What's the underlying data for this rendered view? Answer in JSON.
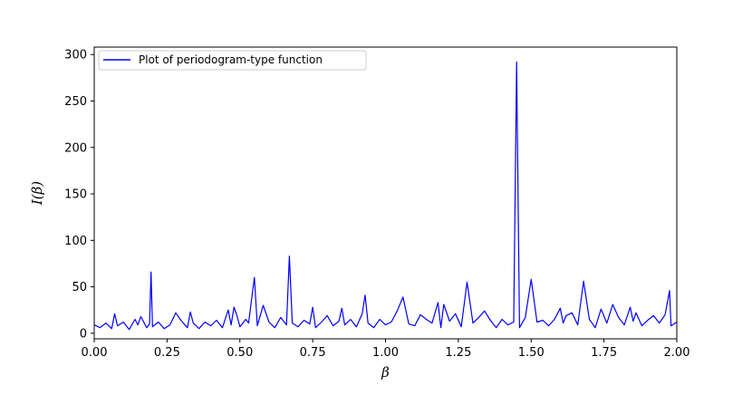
{
  "chart_data": {
    "type": "line",
    "title": "",
    "xlabel": "β",
    "ylabel": "I(β)",
    "xlim": [
      0.0,
      2.0
    ],
    "ylim": [
      -6,
      308
    ],
    "xticks": [
      {
        "value": 0.0,
        "label": "0.00"
      },
      {
        "value": 0.25,
        "label": "0.25"
      },
      {
        "value": 0.5,
        "label": "0.50"
      },
      {
        "value": 0.75,
        "label": "0.75"
      },
      {
        "value": 1.0,
        "label": "1.00"
      },
      {
        "value": 1.25,
        "label": "1.25"
      },
      {
        "value": 1.5,
        "label": "1.50"
      },
      {
        "value": 1.75,
        "label": "1.75"
      },
      {
        "value": 2.0,
        "label": "2.00"
      }
    ],
    "yticks": [
      {
        "value": 0,
        "label": "0"
      },
      {
        "value": 50,
        "label": "50"
      },
      {
        "value": 100,
        "label": "100"
      },
      {
        "value": 150,
        "label": "150"
      },
      {
        "value": 200,
        "label": "200"
      },
      {
        "value": 250,
        "label": "250"
      },
      {
        "value": 300,
        "label": "300"
      }
    ],
    "grid": false,
    "legend": {
      "position": "top-left"
    },
    "series": [
      {
        "name": "Plot of periodogram-type function",
        "color": "#0000ff",
        "x": [
          0.0,
          0.02,
          0.04,
          0.06,
          0.07,
          0.08,
          0.1,
          0.12,
          0.14,
          0.15,
          0.16,
          0.18,
          0.19,
          0.195,
          0.2,
          0.22,
          0.24,
          0.26,
          0.28,
          0.3,
          0.32,
          0.33,
          0.34,
          0.36,
          0.38,
          0.4,
          0.42,
          0.44,
          0.46,
          0.47,
          0.48,
          0.49,
          0.5,
          0.52,
          0.53,
          0.54,
          0.55,
          0.56,
          0.58,
          0.6,
          0.62,
          0.64,
          0.66,
          0.67,
          0.68,
          0.7,
          0.72,
          0.74,
          0.75,
          0.76,
          0.78,
          0.8,
          0.82,
          0.84,
          0.85,
          0.86,
          0.88,
          0.9,
          0.92,
          0.93,
          0.94,
          0.96,
          0.98,
          1.0,
          1.02,
          1.04,
          1.06,
          1.08,
          1.1,
          1.12,
          1.14,
          1.16,
          1.18,
          1.19,
          1.2,
          1.22,
          1.24,
          1.26,
          1.28,
          1.3,
          1.32,
          1.34,
          1.36,
          1.38,
          1.4,
          1.42,
          1.44,
          1.45,
          1.46,
          1.48,
          1.5,
          1.52,
          1.54,
          1.56,
          1.58,
          1.6,
          1.61,
          1.62,
          1.64,
          1.66,
          1.68,
          1.7,
          1.72,
          1.74,
          1.76,
          1.78,
          1.8,
          1.82,
          1.84,
          1.85,
          1.86,
          1.88,
          1.9,
          1.92,
          1.94,
          1.96,
          1.975,
          1.98,
          2.0
        ],
        "y": [
          9,
          6,
          11,
          5,
          21,
          8,
          12,
          4,
          15,
          9,
          18,
          6,
          10,
          66,
          7,
          12,
          5,
          9,
          22,
          13,
          6,
          23,
          11,
          5,
          12,
          8,
          14,
          6,
          25,
          9,
          28,
          19,
          7,
          15,
          11,
          36,
          60,
          8,
          30,
          12,
          6,
          17,
          9,
          83,
          11,
          7,
          14,
          10,
          28,
          6,
          12,
          19,
          8,
          13,
          27,
          9,
          15,
          7,
          21,
          41,
          11,
          6,
          15,
          9,
          12,
          24,
          39,
          10,
          8,
          20,
          15,
          11,
          33,
          6,
          31,
          13,
          21,
          7,
          55,
          11,
          17,
          24,
          14,
          6,
          15,
          9,
          12,
          292,
          6,
          17,
          58,
          12,
          14,
          8,
          15,
          27,
          11,
          19,
          22,
          9,
          56,
          15,
          6,
          26,
          11,
          31,
          17,
          9,
          28,
          13,
          22,
          8,
          14,
          19,
          11,
          20,
          46,
          8,
          12
        ]
      }
    ]
  }
}
